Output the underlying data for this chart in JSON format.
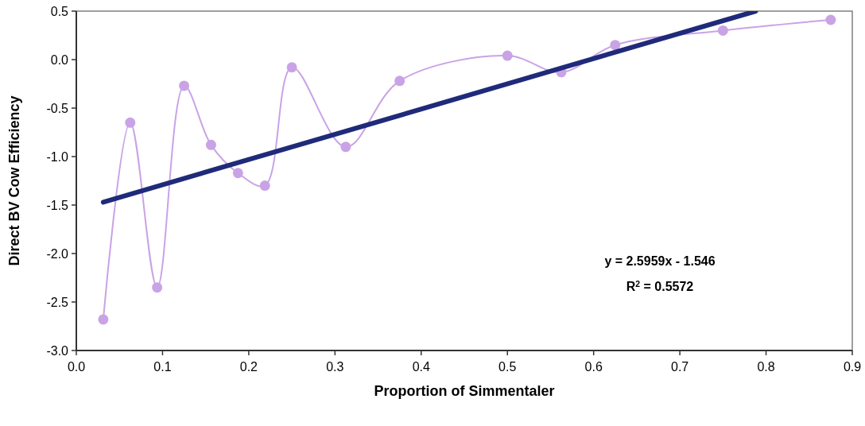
{
  "chart_data": {
    "type": "line",
    "xlabel": "Proportion of Simmentaler",
    "ylabel": "Direct BV Cow Efficiency",
    "xlim": [
      0,
      0.9
    ],
    "xticks": [
      {
        "value": 0,
        "label": "0.0"
      },
      0.1,
      0.2,
      0.3,
      0.4,
      0.5,
      0.6,
      0.7,
      0.8,
      0.9
    ],
    "ylim": [
      -3,
      0.5
    ],
    "yticks": [
      {
        "value": -3,
        "label": "-3.0"
      },
      -2.5,
      {
        "value": -2,
        "label": "-2.0"
      },
      -1.5,
      {
        "value": -1,
        "label": "-1.0"
      },
      -0.5,
      {
        "value": 0,
        "label": "0.0"
      },
      0.5
    ],
    "grid": false,
    "series": [
      {
        "color": "#c9a3e6",
        "marker": "circle",
        "x": [
          0.03125,
          0.0625,
          0.09375,
          0.125,
          0.15625,
          0.1875,
          0.21875,
          0.25,
          0.3125,
          0.375,
          0.5,
          0.5625,
          0.625,
          0.75,
          0.875
        ],
        "values": [
          -2.68,
          -0.65,
          -2.35,
          -0.27,
          -0.88,
          -1.17,
          -1.3,
          -0.08,
          -0.9,
          -0.22,
          0.04,
          -0.13,
          0.15,
          0.3,
          0.41
        ]
      },
      {
        "color": "#1f2a7a",
        "marker": "none",
        "x": [
          0.03125,
          0.788
        ],
        "values": [
          -1.47,
          0.5
        ]
      }
    ],
    "annotations": [
      "y = 2.5959x - 1.546",
      "R$^{2}$ = 0.5572"
    ]
  }
}
